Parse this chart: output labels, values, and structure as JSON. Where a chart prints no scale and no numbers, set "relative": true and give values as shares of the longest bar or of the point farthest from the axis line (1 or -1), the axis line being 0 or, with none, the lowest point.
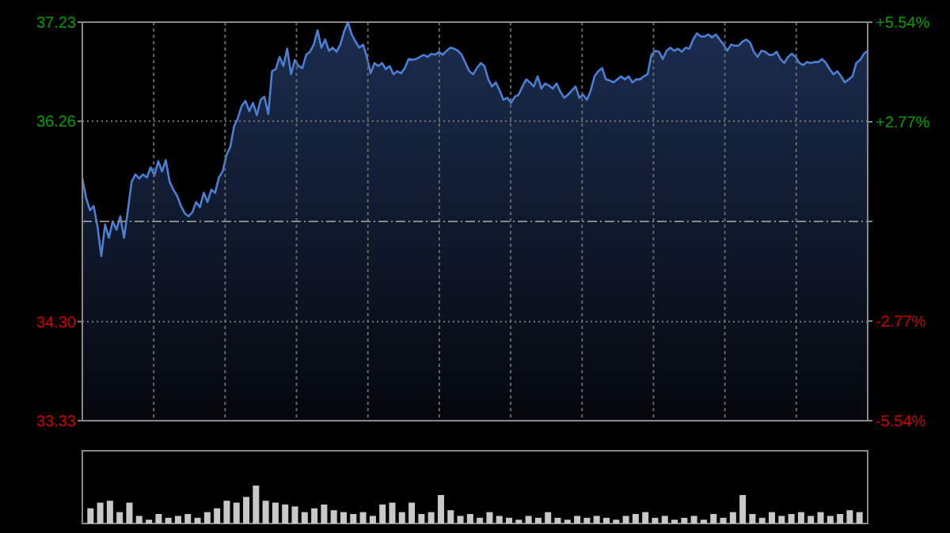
{
  "chart_data": [
    {
      "type": "area",
      "categories": [
        null,
        null,
        null,
        null,
        null,
        null,
        null,
        null,
        null,
        null,
        null,
        null,
        null,
        null,
        null,
        null,
        null,
        null,
        null,
        null,
        null,
        null,
        null,
        null,
        null,
        null,
        null,
        null,
        null,
        null,
        null,
        null,
        null,
        null,
        null,
        null,
        null,
        null,
        null,
        null,
        null,
        null,
        null,
        null,
        null,
        null,
        null,
        null,
        null,
        null,
        null,
        null,
        null,
        null,
        null,
        null,
        null,
        null,
        null,
        null,
        null,
        null,
        null,
        null,
        null,
        null,
        null,
        null,
        null,
        null,
        null,
        null,
        null,
        null,
        null,
        null,
        null,
        null,
        null,
        null,
        null,
        null,
        null,
        null,
        null,
        null,
        null,
        null,
        null,
        null,
        null,
        null,
        null,
        null,
        null,
        null,
        null,
        null,
        null,
        null,
        null,
        null,
        null,
        null,
        null,
        null,
        null,
        null,
        null,
        null,
        null,
        null,
        null,
        null,
        null,
        null,
        null,
        null,
        null,
        null,
        null,
        null,
        null,
        null,
        null,
        null,
        null,
        null,
        null,
        null,
        null,
        null,
        null,
        null,
        null,
        null,
        null,
        null,
        null,
        null,
        null,
        null,
        null,
        null,
        null,
        null,
        null,
        null,
        null,
        null,
        null,
        null,
        null,
        null,
        null,
        null,
        null,
        null,
        null,
        null,
        null,
        null,
        null,
        null,
        null,
        null,
        null,
        null,
        null,
        null,
        null,
        null,
        null,
        null,
        null,
        null,
        null,
        null,
        null,
        null,
        null,
        null,
        null,
        null,
        null,
        null,
        null,
        null,
        null,
        null,
        null,
        null,
        null,
        null,
        null,
        null,
        null,
        null,
        null,
        null,
        null,
        null,
        null,
        null,
        null,
        null,
        null,
        null
      ],
      "series": [
        {
          "color": "#4a7fd4",
          "values": [
            35.7,
            35.51,
            35.39,
            35.43,
            35.23,
            34.94,
            35.25,
            35.12,
            35.28,
            35.2,
            35.33,
            35.12,
            35.39,
            35.67,
            35.74,
            35.7,
            35.74,
            35.71,
            35.81,
            35.73,
            35.87,
            35.77,
            35.88,
            35.67,
            35.59,
            35.53,
            35.43,
            35.36,
            35.33,
            35.37,
            35.47,
            35.42,
            35.56,
            35.47,
            35.59,
            35.56,
            35.71,
            35.77,
            35.93,
            36.01,
            36.21,
            36.29,
            36.41,
            36.46,
            36.36,
            36.44,
            36.32,
            36.47,
            36.5,
            36.33,
            36.75,
            36.77,
            36.89,
            36.8,
            36.97,
            36.72,
            36.86,
            36.8,
            36.78,
            36.91,
            36.94,
            37.01,
            37.15,
            36.98,
            37.06,
            36.95,
            36.98,
            36.94,
            37.01,
            37.14,
            37.23,
            37.11,
            37.04,
            36.98,
            37.01,
            36.89,
            36.73,
            36.83,
            36.8,
            36.83,
            36.77,
            36.8,
            36.72,
            36.75,
            36.73,
            36.78,
            36.87,
            36.86,
            36.87,
            36.89,
            36.91,
            36.89,
            36.92,
            36.91,
            36.94,
            36.91,
            36.95,
            36.98,
            36.97,
            36.95,
            36.91,
            36.83,
            36.75,
            36.72,
            36.78,
            36.83,
            36.8,
            36.67,
            36.6,
            36.64,
            36.56,
            36.47,
            36.49,
            36.44,
            36.5,
            36.52,
            36.6,
            36.67,
            36.64,
            36.6,
            36.7,
            36.58,
            36.63,
            36.61,
            36.58,
            36.63,
            36.55,
            36.49,
            36.52,
            36.56,
            36.6,
            36.49,
            36.52,
            36.47,
            36.56,
            36.7,
            36.75,
            36.78,
            36.67,
            36.66,
            36.64,
            36.67,
            36.7,
            36.67,
            36.7,
            36.64,
            36.67,
            36.67,
            36.7,
            36.72,
            36.91,
            36.95,
            36.94,
            36.87,
            36.95,
            36.98,
            36.95,
            36.97,
            36.94,
            36.98,
            36.97,
            37.06,
            37.12,
            37.09,
            37.09,
            37.11,
            37.08,
            37.11,
            37.06,
            37.01,
            36.95,
            37.01,
            37.0,
            37.0,
            37.04,
            37.06,
            37.03,
            36.94,
            36.89,
            36.95,
            36.94,
            36.91,
            36.91,
            36.94,
            36.87,
            36.83,
            36.89,
            36.92,
            36.89,
            36.83,
            36.81,
            36.84,
            36.83,
            36.84,
            36.84,
            36.87,
            36.83,
            36.77,
            36.72,
            36.75,
            36.7,
            36.64,
            36.67,
            36.7,
            36.83,
            36.86,
            36.92,
            36.95
          ]
        }
      ],
      "ylim": [
        33.33,
        37.23
      ],
      "yticks": [
        33.33,
        {
          "value": 34.3,
          "label": "34.30"
        },
        36.26,
        37.23
      ],
      "ref_lines": [
        {
          "axis": "y",
          "value": 35.28,
          "line_style": "dashed",
          "color": "#888888"
        }
      ],
      "y2lim": [
        -5.54,
        5.54
      ],
      "y2ticks": [
        {
          "value": -5.54,
          "label": "-5.54%"
        },
        {
          "value": -2.77,
          "label": "-2.77%"
        },
        {
          "value": 0,
          "label": null
        },
        {
          "value": 2.77,
          "label": "+2.77%"
        },
        {
          "value": 5.54,
          "label": "+5.54%"
        }
      ],
      "grid": true
    },
    {
      "type": "bar",
      "relative": true,
      "categories": [
        null,
        null,
        null,
        null,
        null,
        null,
        null,
        null,
        null,
        null,
        null,
        null,
        null,
        null,
        null,
        null,
        null,
        null,
        null,
        null,
        null,
        null,
        null,
        null,
        null,
        null,
        null,
        null,
        null,
        null,
        null,
        null,
        null,
        null,
        null,
        null,
        null,
        null,
        null,
        null,
        null,
        null,
        null,
        null,
        null,
        null,
        null,
        null,
        null,
        null,
        null,
        null,
        null,
        null,
        null,
        null,
        null,
        null,
        null,
        null,
        null,
        null,
        null,
        null,
        null,
        null,
        null,
        null,
        null,
        null,
        null,
        null,
        null,
        null,
        null,
        null,
        null,
        null,
        null,
        null
      ],
      "values": [
        0.4,
        0.55,
        0.6,
        0.3,
        0.55,
        0.2,
        0.1,
        0.25,
        0.15,
        0.2,
        0.25,
        0.15,
        0.3,
        0.4,
        0.6,
        0.55,
        0.7,
        1,
        0.6,
        0.55,
        0.5,
        0.45,
        0.3,
        0.4,
        0.5,
        0.35,
        0.3,
        0.25,
        0.3,
        0.2,
        0.5,
        0.55,
        0.3,
        0.55,
        0.25,
        0.3,
        0.75,
        0.35,
        0.2,
        0.25,
        0.15,
        0.3,
        0.2,
        0.15,
        0.1,
        0.2,
        0.15,
        0.3,
        0.15,
        0.1,
        0.2,
        0.15,
        0.2,
        0.15,
        0.1,
        0.2,
        0.25,
        0.3,
        0.15,
        0.2,
        0.1,
        0.15,
        0.2,
        0.1,
        0.25,
        0.15,
        0.3,
        0.75,
        0.25,
        0.15,
        0.3,
        0.2,
        0.25,
        0.3,
        0.2,
        0.3,
        0.2,
        0.25,
        0.35,
        0.3
      ],
      "color": "#c8c8c8"
    }
  ]
}
